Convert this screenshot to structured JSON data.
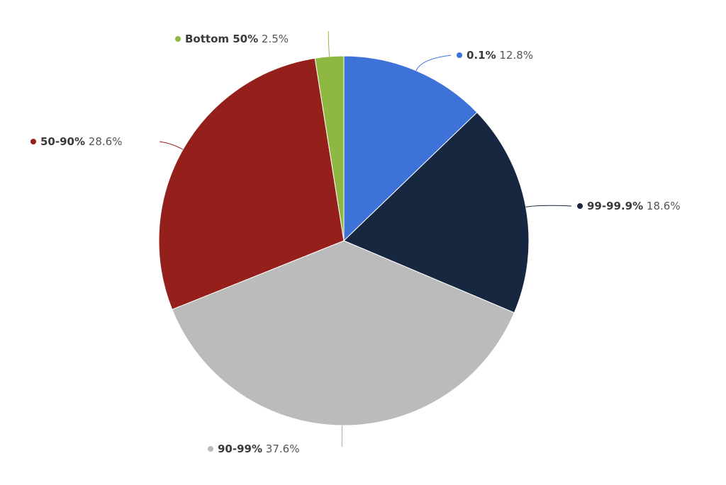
{
  "chart_data": {
    "type": "pie",
    "categories": [
      "0.1%",
      "99-99.9%",
      "90-99%",
      "50-90%",
      "Bottom 50%"
    ],
    "values": [
      12.8,
      18.6,
      37.6,
      28.6,
      2.5
    ],
    "value_labels": [
      "12.8%",
      "18.6%",
      "37.6%",
      "28.6%",
      "2.5%"
    ],
    "colors": [
      "#3d73d9",
      "#16273f",
      "#bbbbbb",
      "#95201b",
      "#8fb843"
    ]
  }
}
